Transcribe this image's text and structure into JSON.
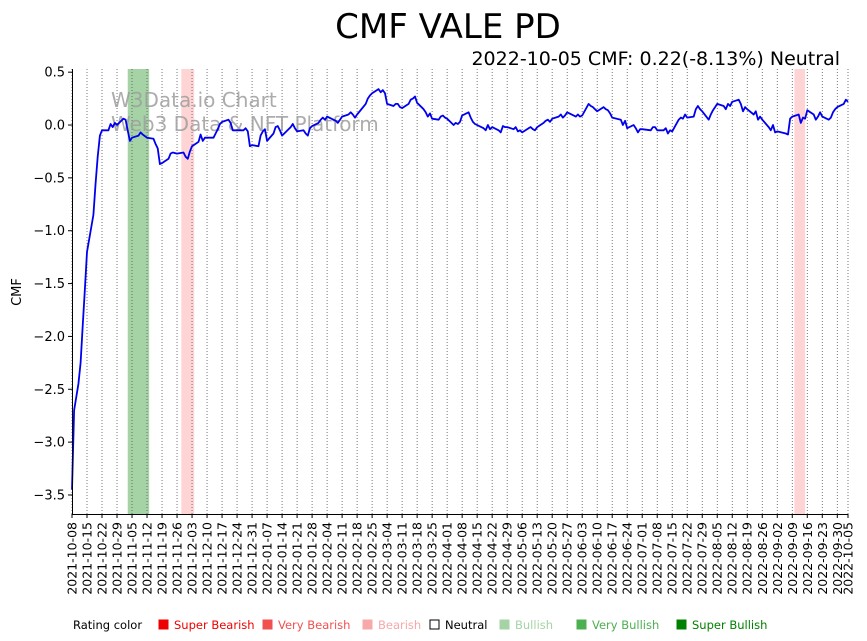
{
  "chart_data": {
    "type": "line",
    "title": "CMF VALE PD",
    "subtitle": "2022-10-05 CMF: 0.22(-8.13%) Neutral",
    "ylabel": "CMF",
    "xlabel": "",
    "ylim": [
      -3.68,
      0.53
    ],
    "yticks": [
      -3.5,
      -3.0,
      -2.5,
      -2.0,
      -1.5,
      -1.0,
      -0.5,
      0.0,
      0.5
    ],
    "ytick_labels": [
      "−3.5",
      "−3.0",
      "−2.5",
      "−2.0",
      "−1.5",
      "−1.0",
      "−0.5",
      "0.0",
      "0.5"
    ],
    "xlim": [
      "2021-10-08",
      "2022-10-05"
    ],
    "x_ticks": [
      "2021-10-08",
      "2021-10-15",
      "2021-10-22",
      "2021-10-29",
      "2021-11-05",
      "2021-11-12",
      "2021-11-19",
      "2021-11-26",
      "2021-12-03",
      "2021-12-10",
      "2021-12-17",
      "2021-12-24",
      "2021-12-31",
      "2022-01-07",
      "2022-01-14",
      "2022-01-21",
      "2022-01-28",
      "2022-02-04",
      "2022-02-11",
      "2022-02-18",
      "2022-02-25",
      "2022-03-04",
      "2022-03-11",
      "2022-03-18",
      "2022-03-25",
      "2022-04-01",
      "2022-04-08",
      "2022-04-15",
      "2022-04-22",
      "2022-04-29",
      "2022-05-06",
      "2022-05-13",
      "2022-05-20",
      "2022-05-27",
      "2022-06-03",
      "2022-06-10",
      "2022-06-17",
      "2022-06-24",
      "2022-07-01",
      "2022-07-08",
      "2022-07-15",
      "2022-07-22",
      "2022-07-29",
      "2022-08-05",
      "2022-08-12",
      "2022-08-19",
      "2022-08-26",
      "2022-09-02",
      "2022-09-09",
      "2022-09-16",
      "2022-09-23",
      "2022-09-30",
      "2022-10-05"
    ],
    "grid": "vertical dotted",
    "series": [
      {
        "color": "#0000ee",
        "points": [
          [
            "2021-10-08",
            -3.45
          ],
          [
            "2021-10-09",
            -2.7
          ],
          [
            "2021-10-11",
            -2.45
          ],
          [
            "2021-10-12",
            -2.25
          ],
          [
            "2021-10-13",
            -1.9
          ],
          [
            "2021-10-14",
            -1.55
          ],
          [
            "2021-10-15",
            -1.2
          ],
          [
            "2021-10-18",
            -0.85
          ],
          [
            "2021-10-19",
            -0.55
          ],
          [
            "2021-10-20",
            -0.3
          ],
          [
            "2021-10-21",
            -0.1
          ],
          [
            "2021-10-22",
            -0.05
          ],
          [
            "2021-10-25",
            -0.05
          ],
          [
            "2021-10-26",
            0.01
          ],
          [
            "2021-10-27",
            -0.02
          ],
          [
            "2021-10-28",
            0.02
          ],
          [
            "2021-10-29",
            0.0
          ],
          [
            "2021-11-01",
            0.06
          ],
          [
            "2021-11-02",
            0.05
          ],
          [
            "2021-11-03",
            -0.05
          ],
          [
            "2021-11-04",
            -0.15
          ],
          [
            "2021-11-05",
            -0.12
          ],
          [
            "2021-11-08",
            -0.1
          ],
          [
            "2021-11-09",
            -0.07
          ],
          [
            "2021-11-10",
            -0.09
          ],
          [
            "2021-11-12",
            -0.12
          ],
          [
            "2021-11-15",
            -0.13
          ],
          [
            "2021-11-16",
            -0.18
          ],
          [
            "2021-11-17",
            -0.22
          ],
          [
            "2021-11-18",
            -0.37
          ],
          [
            "2021-11-19",
            -0.36
          ],
          [
            "2021-11-22",
            -0.32
          ],
          [
            "2021-11-23",
            -0.27
          ],
          [
            "2021-11-24",
            -0.26
          ],
          [
            "2021-11-26",
            -0.27
          ],
          [
            "2021-11-29",
            -0.26
          ],
          [
            "2021-11-30",
            -0.3
          ],
          [
            "2021-12-01",
            -0.32
          ],
          [
            "2021-12-02",
            -0.25
          ],
          [
            "2021-12-03",
            -0.2
          ],
          [
            "2021-12-06",
            -0.16
          ],
          [
            "2021-12-07",
            -0.09
          ],
          [
            "2021-12-08",
            -0.15
          ],
          [
            "2021-12-09",
            -0.12
          ],
          [
            "2021-12-10",
            -0.12
          ],
          [
            "2021-12-13",
            -0.12
          ],
          [
            "2021-12-14",
            -0.08
          ],
          [
            "2021-12-15",
            -0.04
          ],
          [
            "2021-12-16",
            0.01
          ],
          [
            "2021-12-17",
            0.03
          ],
          [
            "2021-12-20",
            0.05
          ],
          [
            "2021-12-21",
            0.02
          ],
          [
            "2021-12-22",
            -0.05
          ],
          [
            "2021-12-23",
            -0.05
          ],
          [
            "2021-12-27",
            -0.05
          ],
          [
            "2021-12-28",
            -0.03
          ],
          [
            "2021-12-29",
            -0.06
          ],
          [
            "2021-12-30",
            -0.2
          ],
          [
            "2021-12-31",
            -0.19
          ],
          [
            "2022-01-03",
            -0.2
          ],
          [
            "2022-01-04",
            -0.1
          ],
          [
            "2022-01-05",
            -0.06
          ],
          [
            "2022-01-06",
            -0.04
          ],
          [
            "2022-01-07",
            -0.15
          ],
          [
            "2022-01-10",
            -0.08
          ],
          [
            "2022-01-11",
            -0.02
          ],
          [
            "2022-01-12",
            -0.01
          ],
          [
            "2022-01-13",
            -0.05
          ],
          [
            "2022-01-14",
            -0.1
          ],
          [
            "2022-01-18",
            -0.02
          ],
          [
            "2022-01-19",
            0.01
          ],
          [
            "2022-01-20",
            -0.03
          ],
          [
            "2022-01-21",
            -0.06
          ],
          [
            "2022-01-24",
            -0.05
          ],
          [
            "2022-01-25",
            -0.08
          ],
          [
            "2022-01-26",
            -0.1
          ],
          [
            "2022-01-27",
            -0.03
          ],
          [
            "2022-01-28",
            -0.01
          ],
          [
            "2022-01-31",
            0.02
          ],
          [
            "2022-02-01",
            0.05
          ],
          [
            "2022-02-02",
            0.07
          ],
          [
            "2022-02-03",
            0.05
          ],
          [
            "2022-02-04",
            0.08
          ],
          [
            "2022-02-07",
            0.05
          ],
          [
            "2022-02-08",
            0.04
          ],
          [
            "2022-02-09",
            0.02
          ],
          [
            "2022-02-10",
            0.05
          ],
          [
            "2022-02-11",
            0.08
          ],
          [
            "2022-02-14",
            0.1
          ],
          [
            "2022-02-15",
            0.12
          ],
          [
            "2022-02-16",
            0.1
          ],
          [
            "2022-02-17",
            0.07
          ],
          [
            "2022-02-18",
            0.1
          ],
          [
            "2022-02-22",
            0.2
          ],
          [
            "2022-02-23",
            0.25
          ],
          [
            "2022-02-24",
            0.28
          ],
          [
            "2022-02-25",
            0.3
          ],
          [
            "2022-02-28",
            0.34
          ],
          [
            "2022-03-01",
            0.31
          ],
          [
            "2022-03-02",
            0.33
          ],
          [
            "2022-03-03",
            0.3
          ],
          [
            "2022-03-04",
            0.2
          ],
          [
            "2022-03-07",
            0.18
          ],
          [
            "2022-03-08",
            0.2
          ],
          [
            "2022-03-09",
            0.2
          ],
          [
            "2022-03-10",
            0.17
          ],
          [
            "2022-03-11",
            0.16
          ],
          [
            "2022-03-14",
            0.2
          ],
          [
            "2022-03-15",
            0.24
          ],
          [
            "2022-03-16",
            0.25
          ],
          [
            "2022-03-17",
            0.27
          ],
          [
            "2022-03-18",
            0.21
          ],
          [
            "2022-03-21",
            0.15
          ],
          [
            "2022-03-22",
            0.12
          ],
          [
            "2022-03-23",
            0.08
          ],
          [
            "2022-03-24",
            0.11
          ],
          [
            "2022-03-25",
            0.06
          ],
          [
            "2022-03-28",
            0.05
          ],
          [
            "2022-03-29",
            0.08
          ],
          [
            "2022-03-30",
            0.09
          ],
          [
            "2022-03-31",
            0.07
          ],
          [
            "2022-04-01",
            0.06
          ],
          [
            "2022-04-04",
            0.0
          ],
          [
            "2022-04-05",
            0.02
          ],
          [
            "2022-04-06",
            0.01
          ],
          [
            "2022-04-07",
            0.03
          ],
          [
            "2022-04-08",
            0.09
          ],
          [
            "2022-04-11",
            0.12
          ],
          [
            "2022-04-12",
            0.07
          ],
          [
            "2022-04-13",
            0.03
          ],
          [
            "2022-04-14",
            0.01
          ],
          [
            "2022-04-18",
            -0.03
          ],
          [
            "2022-04-19",
            -0.05
          ],
          [
            "2022-04-20",
            0.0
          ],
          [
            "2022-04-21",
            -0.04
          ],
          [
            "2022-04-22",
            -0.02
          ],
          [
            "2022-04-25",
            -0.05
          ],
          [
            "2022-04-26",
            -0.07
          ],
          [
            "2022-04-27",
            -0.01
          ],
          [
            "2022-04-28",
            -0.02
          ],
          [
            "2022-04-29",
            -0.02
          ],
          [
            "2022-05-02",
            -0.04
          ],
          [
            "2022-05-03",
            -0.02
          ],
          [
            "2022-05-04",
            -0.06
          ],
          [
            "2022-05-05",
            -0.05
          ],
          [
            "2022-05-06",
            -0.07
          ],
          [
            "2022-05-09",
            -0.03
          ],
          [
            "2022-05-10",
            -0.02
          ],
          [
            "2022-05-11",
            -0.04
          ],
          [
            "2022-05-12",
            -0.05
          ],
          [
            "2022-05-13",
            -0.02
          ],
          [
            "2022-05-16",
            0.02
          ],
          [
            "2022-05-17",
            0.04
          ],
          [
            "2022-05-18",
            0.05
          ],
          [
            "2022-05-19",
            0.03
          ],
          [
            "2022-05-20",
            0.06
          ],
          [
            "2022-05-23",
            0.08
          ],
          [
            "2022-05-24",
            0.1
          ],
          [
            "2022-05-25",
            0.07
          ],
          [
            "2022-05-26",
            0.09
          ],
          [
            "2022-05-27",
            0.12
          ],
          [
            "2022-05-31",
            0.08
          ],
          [
            "2022-06-01",
            0.1
          ],
          [
            "2022-06-02",
            0.08
          ],
          [
            "2022-06-03",
            0.09
          ],
          [
            "2022-06-06",
            0.2
          ],
          [
            "2022-06-07",
            0.18
          ],
          [
            "2022-06-08",
            0.17
          ],
          [
            "2022-06-09",
            0.15
          ],
          [
            "2022-06-10",
            0.13
          ],
          [
            "2022-06-13",
            0.17
          ],
          [
            "2022-06-14",
            0.15
          ],
          [
            "2022-06-15",
            0.14
          ],
          [
            "2022-06-16",
            0.11
          ],
          [
            "2022-06-17",
            0.07
          ],
          [
            "2022-06-21",
            0.05
          ],
          [
            "2022-06-22",
            0.0
          ],
          [
            "2022-06-23",
            0.04
          ],
          [
            "2022-06-24",
            -0.03
          ],
          [
            "2022-06-27",
            0.0
          ],
          [
            "2022-06-28",
            -0.03
          ],
          [
            "2022-06-29",
            -0.07
          ],
          [
            "2022-06-30",
            -0.04
          ],
          [
            "2022-07-01",
            -0.04
          ],
          [
            "2022-07-05",
            -0.05
          ],
          [
            "2022-07-06",
            -0.02
          ],
          [
            "2022-07-07",
            -0.02
          ],
          [
            "2022-07-08",
            -0.05
          ],
          [
            "2022-07-11",
            -0.05
          ],
          [
            "2022-07-12",
            -0.03
          ],
          [
            "2022-07-13",
            -0.08
          ],
          [
            "2022-07-14",
            -0.05
          ],
          [
            "2022-07-15",
            -0.06
          ],
          [
            "2022-07-18",
            0.05
          ],
          [
            "2022-07-19",
            0.07
          ],
          [
            "2022-07-20",
            0.06
          ],
          [
            "2022-07-21",
            0.1
          ],
          [
            "2022-07-22",
            0.07
          ],
          [
            "2022-07-25",
            0.08
          ],
          [
            "2022-07-26",
            0.15
          ],
          [
            "2022-07-27",
            0.18
          ],
          [
            "2022-07-28",
            0.15
          ],
          [
            "2022-07-29",
            0.13
          ],
          [
            "2022-08-01",
            0.05
          ],
          [
            "2022-08-02",
            0.1
          ],
          [
            "2022-08-03",
            0.14
          ],
          [
            "2022-08-04",
            0.17
          ],
          [
            "2022-08-05",
            0.2
          ],
          [
            "2022-08-08",
            0.18
          ],
          [
            "2022-08-09",
            0.15
          ],
          [
            "2022-08-10",
            0.2
          ],
          [
            "2022-08-11",
            0.18
          ],
          [
            "2022-08-12",
            0.22
          ],
          [
            "2022-08-15",
            0.24
          ],
          [
            "2022-08-16",
            0.2
          ],
          [
            "2022-08-17",
            0.13
          ],
          [
            "2022-08-18",
            0.17
          ],
          [
            "2022-08-19",
            0.15
          ],
          [
            "2022-08-22",
            0.1
          ],
          [
            "2022-08-23",
            0.13
          ],
          [
            "2022-08-24",
            0.05
          ],
          [
            "2022-08-25",
            0.08
          ],
          [
            "2022-08-26",
            0.05
          ],
          [
            "2022-08-29",
            -0.02
          ],
          [
            "2022-08-30",
            -0.05
          ],
          [
            "2022-08-31",
            0.0
          ],
          [
            "2022-09-01",
            -0.07
          ],
          [
            "2022-09-02",
            -0.06
          ],
          [
            "2022-09-06",
            -0.08
          ],
          [
            "2022-09-07",
            -0.09
          ],
          [
            "2022-09-08",
            0.06
          ],
          [
            "2022-09-09",
            0.08
          ],
          [
            "2022-09-12",
            0.1
          ],
          [
            "2022-09-13",
            0.02
          ],
          [
            "2022-09-14",
            0.07
          ],
          [
            "2022-09-15",
            0.06
          ],
          [
            "2022-09-16",
            0.14
          ],
          [
            "2022-09-19",
            0.1
          ],
          [
            "2022-09-20",
            0.05
          ],
          [
            "2022-09-21",
            0.08
          ],
          [
            "2022-09-22",
            0.12
          ],
          [
            "2022-09-23",
            0.08
          ],
          [
            "2022-09-26",
            0.05
          ],
          [
            "2022-09-27",
            0.07
          ],
          [
            "2022-09-28",
            0.12
          ],
          [
            "2022-09-29",
            0.15
          ],
          [
            "2022-09-30",
            0.17
          ],
          [
            "2022-10-03",
            0.2
          ],
          [
            "2022-10-04",
            0.24
          ],
          [
            "2022-10-05",
            0.22
          ]
        ]
      }
    ],
    "bands": [
      {
        "from": "2021-11-03",
        "to": "2021-11-13",
        "rating": "Very Bullish",
        "color": "#a5d3a5"
      },
      {
        "from": "2021-11-28",
        "to": "2021-12-04",
        "rating": "Bearish",
        "color": "#ffd4d4"
      },
      {
        "from": "2022-09-10",
        "to": "2022-09-15",
        "rating": "Bearish",
        "color": "#ffd4d4"
      }
    ],
    "watermark": [
      "W3Data.io Chart",
      "Web3 Data & NFT Platform"
    ],
    "legend": {
      "title": "Rating color",
      "items": [
        {
          "label": "Super Bearish",
          "color": "#ee0000"
        },
        {
          "label": "Very Bearish",
          "color": "#f05050"
        },
        {
          "label": "Bearish",
          "color": "#f7a8a8"
        },
        {
          "label": "Neutral",
          "color": "#ffffff"
        },
        {
          "label": "Bullish",
          "color": "#a5d3a5"
        },
        {
          "label": "Very Bullish",
          "color": "#4caf50"
        },
        {
          "label": "Super Bullish",
          "color": "#008000"
        }
      ]
    }
  }
}
